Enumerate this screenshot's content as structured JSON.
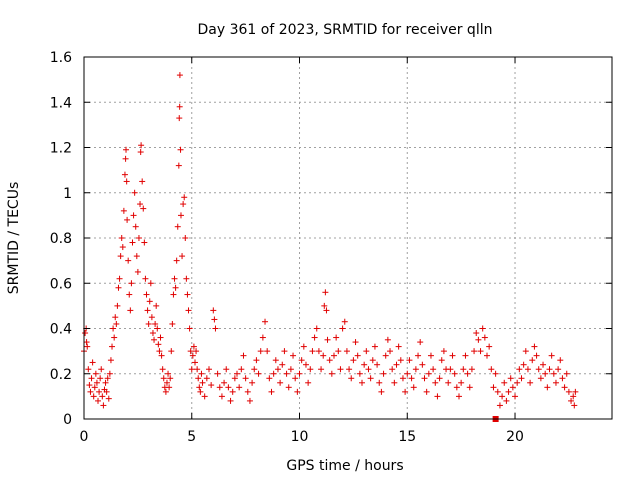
{
  "chart_data": {
    "type": "scatter",
    "title": "Day 361 of 2023, SRMTID for receiver qlln",
    "xlabel": "GPS time / hours",
    "ylabel": "SRMTID / TECUs",
    "xlim": [
      0,
      24.5
    ],
    "ylim": [
      0,
      1.6
    ],
    "grid": true,
    "marker": "plus",
    "color": "#e00000",
    "xticks": [
      0,
      5,
      10,
      15,
      20
    ],
    "xtick_labels": [
      "0",
      "5",
      "10",
      "15",
      "20"
    ],
    "yticks": [
      0,
      0.2,
      0.4,
      0.6,
      0.8,
      1.0,
      1.2,
      1.4,
      1.6
    ],
    "ytick_labels": [
      "0",
      "0.2",
      "0.4",
      "0.6",
      "0.8",
      "1",
      "1.2",
      "1.4",
      "1.6"
    ],
    "series": [
      {
        "name": "SRMTID",
        "points": [
          [
            0.0,
            0.3
          ],
          [
            0.05,
            0.38
          ],
          [
            0.1,
            0.4
          ],
          [
            0.12,
            0.34
          ],
          [
            0.15,
            0.32
          ],
          [
            0.2,
            0.22
          ],
          [
            0.25,
            0.15
          ],
          [
            0.3,
            0.12
          ],
          [
            0.35,
            0.18
          ],
          [
            0.4,
            0.25
          ],
          [
            0.45,
            0.1
          ],
          [
            0.5,
            0.14
          ],
          [
            0.55,
            0.2
          ],
          [
            0.6,
            0.16
          ],
          [
            0.65,
            0.08
          ],
          [
            0.7,
            0.12
          ],
          [
            0.75,
            0.18
          ],
          [
            0.8,
            0.22
          ],
          [
            0.85,
            0.1
          ],
          [
            0.9,
            0.06
          ],
          [
            0.95,
            0.13
          ],
          [
            1.0,
            0.16
          ],
          [
            1.05,
            0.12
          ],
          [
            1.1,
            0.18
          ],
          [
            1.15,
            0.09
          ],
          [
            1.2,
            0.2
          ],
          [
            1.25,
            0.26
          ],
          [
            1.3,
            0.32
          ],
          [
            1.35,
            0.4
          ],
          [
            1.4,
            0.36
          ],
          [
            1.45,
            0.45
          ],
          [
            1.5,
            0.42
          ],
          [
            1.55,
            0.5
          ],
          [
            1.6,
            0.58
          ],
          [
            1.65,
            0.62
          ],
          [
            1.7,
            0.72
          ],
          [
            1.75,
            0.8
          ],
          [
            1.8,
            0.76
          ],
          [
            1.85,
            0.92
          ],
          [
            1.9,
            1.08
          ],
          [
            1.93,
            1.15
          ],
          [
            1.95,
            1.19
          ],
          [
            1.98,
            1.05
          ],
          [
            2.0,
            0.88
          ],
          [
            2.05,
            0.7
          ],
          [
            2.1,
            0.55
          ],
          [
            2.15,
            0.48
          ],
          [
            2.2,
            0.6
          ],
          [
            2.25,
            0.78
          ],
          [
            2.3,
            0.9
          ],
          [
            2.35,
            1.0
          ],
          [
            2.4,
            0.85
          ],
          [
            2.45,
            0.72
          ],
          [
            2.5,
            0.65
          ],
          [
            2.55,
            0.8
          ],
          [
            2.6,
            0.95
          ],
          [
            2.63,
            1.18
          ],
          [
            2.65,
            1.21
          ],
          [
            2.7,
            1.05
          ],
          [
            2.75,
            0.93
          ],
          [
            2.8,
            0.78
          ],
          [
            2.85,
            0.62
          ],
          [
            2.9,
            0.55
          ],
          [
            2.95,
            0.48
          ],
          [
            3.0,
            0.42
          ],
          [
            3.05,
            0.52
          ],
          [
            3.1,
            0.6
          ],
          [
            3.15,
            0.45
          ],
          [
            3.2,
            0.38
          ],
          [
            3.25,
            0.35
          ],
          [
            3.3,
            0.42
          ],
          [
            3.35,
            0.5
          ],
          [
            3.4,
            0.4
          ],
          [
            3.45,
            0.33
          ],
          [
            3.5,
            0.3
          ],
          [
            3.55,
            0.36
          ],
          [
            3.6,
            0.28
          ],
          [
            3.65,
            0.22
          ],
          [
            3.7,
            0.18
          ],
          [
            3.75,
            0.14
          ],
          [
            3.8,
            0.12
          ],
          [
            3.85,
            0.16
          ],
          [
            3.9,
            0.2
          ],
          [
            3.95,
            0.14
          ],
          [
            4.0,
            0.18
          ],
          [
            4.05,
            0.3
          ],
          [
            4.1,
            0.42
          ],
          [
            4.15,
            0.55
          ],
          [
            4.2,
            0.62
          ],
          [
            4.25,
            0.58
          ],
          [
            4.3,
            0.7
          ],
          [
            4.35,
            0.85
          ],
          [
            4.4,
            1.12
          ],
          [
            4.42,
            1.33
          ],
          [
            4.44,
            1.38
          ],
          [
            4.45,
            1.52
          ],
          [
            4.48,
            1.19
          ],
          [
            4.5,
            0.9
          ],
          [
            4.55,
            0.72
          ],
          [
            4.6,
            0.95
          ],
          [
            4.65,
            0.98
          ],
          [
            4.7,
            0.8
          ],
          [
            4.75,
            0.62
          ],
          [
            4.8,
            0.55
          ],
          [
            4.85,
            0.48
          ],
          [
            4.9,
            0.4
          ],
          [
            4.95,
            0.3
          ],
          [
            5.0,
            0.22
          ],
          [
            5.05,
            0.28
          ],
          [
            5.1,
            0.32
          ],
          [
            5.15,
            0.25
          ],
          [
            5.2,
            0.3
          ],
          [
            5.25,
            0.22
          ],
          [
            5.3,
            0.18
          ],
          [
            5.35,
            0.14
          ],
          [
            5.4,
            0.12
          ],
          [
            5.45,
            0.2
          ],
          [
            5.5,
            0.16
          ],
          [
            5.6,
            0.1
          ],
          [
            5.7,
            0.18
          ],
          [
            5.8,
            0.22
          ],
          [
            5.9,
            0.15
          ],
          [
            6.0,
            0.48
          ],
          [
            6.05,
            0.44
          ],
          [
            6.1,
            0.4
          ],
          [
            6.2,
            0.2
          ],
          [
            6.3,
            0.14
          ],
          [
            6.4,
            0.1
          ],
          [
            6.5,
            0.16
          ],
          [
            6.6,
            0.22
          ],
          [
            6.7,
            0.14
          ],
          [
            6.8,
            0.08
          ],
          [
            6.9,
            0.12
          ],
          [
            7.0,
            0.18
          ],
          [
            7.1,
            0.2
          ],
          [
            7.2,
            0.14
          ],
          [
            7.3,
            0.22
          ],
          [
            7.4,
            0.28
          ],
          [
            7.5,
            0.18
          ],
          [
            7.6,
            0.12
          ],
          [
            7.7,
            0.08
          ],
          [
            7.8,
            0.16
          ],
          [
            7.9,
            0.22
          ],
          [
            8.0,
            0.26
          ],
          [
            8.1,
            0.2
          ],
          [
            8.2,
            0.3
          ],
          [
            8.3,
            0.36
          ],
          [
            8.4,
            0.43
          ],
          [
            8.5,
            0.3
          ],
          [
            8.6,
            0.18
          ],
          [
            8.7,
            0.12
          ],
          [
            8.8,
            0.2
          ],
          [
            8.9,
            0.26
          ],
          [
            9.0,
            0.22
          ],
          [
            9.1,
            0.16
          ],
          [
            9.2,
            0.24
          ],
          [
            9.3,
            0.3
          ],
          [
            9.4,
            0.2
          ],
          [
            9.5,
            0.14
          ],
          [
            9.6,
            0.22
          ],
          [
            9.7,
            0.28
          ],
          [
            9.8,
            0.18
          ],
          [
            9.9,
            0.12
          ],
          [
            10.0,
            0.2
          ],
          [
            10.1,
            0.26
          ],
          [
            10.2,
            0.32
          ],
          [
            10.3,
            0.24
          ],
          [
            10.4,
            0.16
          ],
          [
            10.5,
            0.22
          ],
          [
            10.6,
            0.3
          ],
          [
            10.7,
            0.36
          ],
          [
            10.8,
            0.4
          ],
          [
            10.9,
            0.3
          ],
          [
            11.0,
            0.22
          ],
          [
            11.1,
            0.28
          ],
          [
            11.15,
            0.5
          ],
          [
            11.2,
            0.56
          ],
          [
            11.25,
            0.48
          ],
          [
            11.3,
            0.35
          ],
          [
            11.4,
            0.26
          ],
          [
            11.5,
            0.2
          ],
          [
            11.6,
            0.28
          ],
          [
            11.7,
            0.36
          ],
          [
            11.8,
            0.3
          ],
          [
            11.9,
            0.22
          ],
          [
            12.0,
            0.4
          ],
          [
            12.1,
            0.43
          ],
          [
            12.2,
            0.3
          ],
          [
            12.3,
            0.22
          ],
          [
            12.4,
            0.18
          ],
          [
            12.5,
            0.26
          ],
          [
            12.6,
            0.34
          ],
          [
            12.7,
            0.28
          ],
          [
            12.8,
            0.2
          ],
          [
            12.9,
            0.16
          ],
          [
            13.0,
            0.24
          ],
          [
            13.1,
            0.3
          ],
          [
            13.2,
            0.22
          ],
          [
            13.3,
            0.18
          ],
          [
            13.4,
            0.26
          ],
          [
            13.5,
            0.32
          ],
          [
            13.6,
            0.24
          ],
          [
            13.7,
            0.16
          ],
          [
            13.8,
            0.12
          ],
          [
            13.9,
            0.2
          ],
          [
            14.0,
            0.28
          ],
          [
            14.1,
            0.35
          ],
          [
            14.2,
            0.3
          ],
          [
            14.3,
            0.22
          ],
          [
            14.4,
            0.16
          ],
          [
            14.5,
            0.24
          ],
          [
            14.6,
            0.32
          ],
          [
            14.7,
            0.26
          ],
          [
            14.8,
            0.18
          ],
          [
            14.9,
            0.12
          ],
          [
            15.0,
            0.2
          ],
          [
            15.1,
            0.26
          ],
          [
            15.2,
            0.18
          ],
          [
            15.3,
            0.14
          ],
          [
            15.4,
            0.22
          ],
          [
            15.5,
            0.28
          ],
          [
            15.6,
            0.34
          ],
          [
            15.7,
            0.24
          ],
          [
            15.8,
            0.18
          ],
          [
            15.9,
            0.12
          ],
          [
            16.0,
            0.2
          ],
          [
            16.1,
            0.28
          ],
          [
            16.2,
            0.22
          ],
          [
            16.3,
            0.16
          ],
          [
            16.4,
            0.1
          ],
          [
            16.5,
            0.18
          ],
          [
            16.6,
            0.26
          ],
          [
            16.7,
            0.3
          ],
          [
            16.8,
            0.22
          ],
          [
            16.9,
            0.16
          ],
          [
            17.0,
            0.22
          ],
          [
            17.1,
            0.28
          ],
          [
            17.2,
            0.2
          ],
          [
            17.3,
            0.14
          ],
          [
            17.4,
            0.1
          ],
          [
            17.5,
            0.16
          ],
          [
            17.6,
            0.22
          ],
          [
            17.7,
            0.28
          ],
          [
            17.8,
            0.2
          ],
          [
            17.9,
            0.14
          ],
          [
            18.0,
            0.22
          ],
          [
            18.1,
            0.3
          ],
          [
            18.2,
            0.38
          ],
          [
            18.3,
            0.35
          ],
          [
            18.4,
            0.3
          ],
          [
            18.5,
            0.4
          ],
          [
            18.6,
            0.36
          ],
          [
            18.7,
            0.28
          ],
          [
            18.8,
            0.32
          ],
          [
            18.9,
            0.22
          ],
          [
            19.0,
            0.14
          ],
          [
            19.1,
            0.2
          ],
          [
            19.2,
            0.12
          ],
          [
            19.3,
            0.06
          ],
          [
            19.4,
            0.1
          ],
          [
            19.5,
            0.16
          ],
          [
            19.6,
            0.08
          ],
          [
            19.7,
            0.12
          ],
          [
            19.8,
            0.18
          ],
          [
            19.9,
            0.14
          ],
          [
            20.0,
            0.1
          ],
          [
            20.1,
            0.16
          ],
          [
            20.2,
            0.22
          ],
          [
            20.3,
            0.18
          ],
          [
            20.4,
            0.24
          ],
          [
            20.5,
            0.3
          ],
          [
            20.6,
            0.22
          ],
          [
            20.7,
            0.16
          ],
          [
            20.8,
            0.26
          ],
          [
            20.9,
            0.32
          ],
          [
            21.0,
            0.28
          ],
          [
            21.1,
            0.22
          ],
          [
            21.2,
            0.18
          ],
          [
            21.3,
            0.24
          ],
          [
            21.4,
            0.2
          ],
          [
            21.5,
            0.14
          ],
          [
            21.6,
            0.22
          ],
          [
            21.7,
            0.28
          ],
          [
            21.8,
            0.2
          ],
          [
            21.9,
            0.16
          ],
          [
            22.0,
            0.22
          ],
          [
            22.1,
            0.26
          ],
          [
            22.2,
            0.18
          ],
          [
            22.3,
            0.14
          ],
          [
            22.4,
            0.2
          ],
          [
            22.5,
            0.12
          ],
          [
            22.6,
            0.08
          ],
          [
            22.7,
            0.1
          ],
          [
            22.75,
            0.06
          ],
          [
            22.8,
            0.12
          ]
        ]
      }
    ],
    "outlier_marker": {
      "x": 19.1,
      "y": 0.0,
      "marker": "filled-square"
    }
  }
}
